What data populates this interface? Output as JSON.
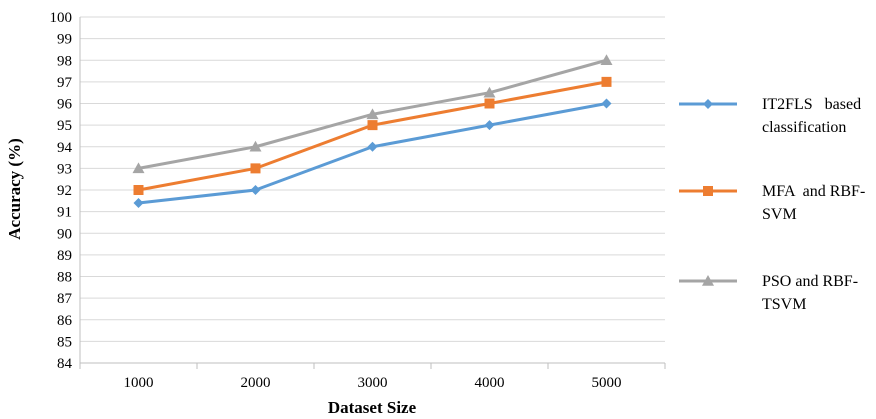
{
  "chart_data": {
    "type": "line",
    "xlabel": "Dataset Size",
    "ylabel": "Accuracy  (%)",
    "categories": [
      "1000",
      "2000",
      "3000",
      "4000",
      "5000"
    ],
    "ylim": [
      84,
      100
    ],
    "ytick_step": 1,
    "grid": true,
    "legend_position": "right",
    "series": [
      {
        "name_lines": [
          "IT2FLS   based",
          "classification"
        ],
        "color": "#5B9BD5",
        "marker": "diamond",
        "values": [
          91.4,
          92,
          94,
          95,
          96
        ]
      },
      {
        "name_lines": [
          "MFA  and RBF-",
          "SVM"
        ],
        "color": "#ED7D31",
        "marker": "square",
        "values": [
          92,
          93,
          95,
          96,
          97
        ]
      },
      {
        "name_lines": [
          "PSO and RBF-",
          "TSVM"
        ],
        "color": "#A5A5A5",
        "marker": "triangle",
        "values": [
          93,
          94,
          95.5,
          96.5,
          98
        ]
      }
    ]
  }
}
